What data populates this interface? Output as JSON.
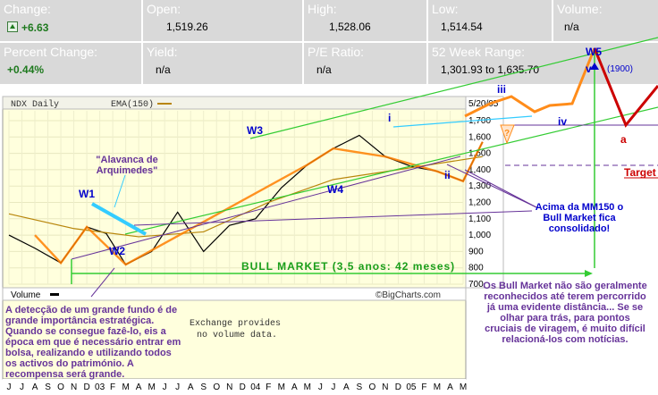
{
  "quote": {
    "change_label": "Change:",
    "change_value": "+6.63",
    "open_label": "Open:",
    "open_value": "1,519.26",
    "high_label": "High:",
    "high_value": "1,528.06",
    "low_label": "Low:",
    "low_value": "1,514.54",
    "volume_label": "Volume:",
    "volume_value": "n/a",
    "pct_label": "Percent Change:",
    "pct_value": "+0.44%",
    "yield_label": "Yield:",
    "yield_value": "n/a",
    "pe_label": "P/E Ratio:",
    "pe_value": "n/a",
    "range_label": "52 Week Range:",
    "range_value": "1,301.93 to 1,635.70"
  },
  "chart_data": {
    "type": "line",
    "legend": [
      "NDX Daily",
      "EMA(150)"
    ],
    "date_label": "5/20/05",
    "y_ticks": [
      700,
      800,
      900,
      1000,
      1100,
      1200,
      1300,
      1400,
      1500,
      1600,
      1700
    ],
    "y_tick_labels": [
      "700",
      "800",
      "900",
      "1,000",
      "1,100",
      "1,200",
      "1,300",
      "1,400",
      "1,500",
      "1,600",
      "1,700"
    ],
    "ylim": [
      700,
      1760
    ],
    "x_labels": [
      "J",
      "J",
      "A",
      "S",
      "O",
      "N",
      "D",
      "03",
      "F",
      "M",
      "A",
      "M",
      "J",
      "J",
      "A",
      "S",
      "O",
      "N",
      "D",
      "04",
      "F",
      "M",
      "A",
      "M",
      "J",
      "J",
      "A",
      "S",
      "O",
      "N",
      "D",
      "05",
      "F",
      "M",
      "A",
      "M"
    ],
    "series": [
      {
        "name": "NDX Daily",
        "x": [
          0,
          2,
          4,
          6,
          7.5,
          9,
          11,
          13,
          15,
          17,
          19,
          21,
          23,
          25,
          27,
          29,
          31,
          33,
          35,
          36.5
        ],
        "values": [
          1000,
          920,
          830,
          1050,
          1010,
          820,
          900,
          1140,
          900,
          1060,
          1100,
          1290,
          1430,
          1530,
          1610,
          1480,
          1420,
          1390,
          1330,
          1570
        ]
      },
      {
        "name": "EMA(150)",
        "x": [
          0,
          5,
          10,
          15,
          20,
          25,
          30,
          36.5
        ],
        "values": [
          1130,
          1040,
          990,
          1020,
          1200,
          1340,
          1400,
          1480
        ]
      }
    ],
    "wave_labels": [
      "W1",
      "W2",
      "W3",
      "W4",
      "W5",
      "i",
      "ii",
      "iii",
      "iv",
      "v",
      "a",
      "?"
    ],
    "annotations": {
      "alavanca": "\"Alavanca de Arquimedes\"",
      "bull_market": "BULL MARKET (3,5 anos: 42 meses)",
      "acima": "Acima da MM150 o Bull Market fica consolidado!",
      "target": "Target",
      "v_value": "(1900)",
      "deteccao": "A detecção de um grande fundo é de grande importância estratégica. Quando se consegue fazê-lo, eis a época em que é necessário entrar em bolsa, realizando e utilizando todos os activos do património. A recompensa será grande.",
      "bull_reconhecido": "Os Bull Market não são geralmente reconhecidos até terem percorrido já uma evidente distância... Se se olhar para trás, para pontos cruciais de viragem, é muito difícil relacioná-los com notícias."
    },
    "volume_label": "Volume",
    "volume_note_1": "Exchange provides",
    "volume_note_2": "no volume data.",
    "watermark": "©BigCharts.com",
    "colors": {
      "price": "#000000",
      "ema": "#b8860b",
      "wave": "#ff7f00",
      "bull": "#33cc33",
      "trend": "#663399",
      "annotation": "#0000cc",
      "alert": "#cc0000"
    }
  }
}
